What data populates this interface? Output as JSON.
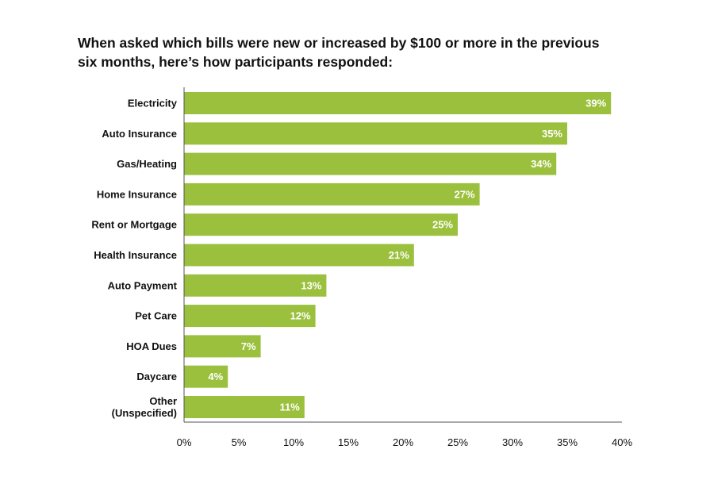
{
  "chart_data": {
    "type": "bar",
    "orientation": "horizontal",
    "title_lines": [
      "When asked which bills were new or increased by $100 or more in the previous",
      "six months, here’s how participants responded:"
    ],
    "categories": [
      [
        "Electricity"
      ],
      [
        "Auto Insurance"
      ],
      [
        "Gas/Heating"
      ],
      [
        "Home Insurance"
      ],
      [
        "Rent or Mortgage"
      ],
      [
        "Health Insurance"
      ],
      [
        "Auto Payment"
      ],
      [
        "Pet Care"
      ],
      [
        "HOA Dues"
      ],
      [
        "Daycare"
      ],
      [
        "Other",
        "(Unspecified)"
      ]
    ],
    "values": [
      39,
      35,
      34,
      27,
      25,
      21,
      13,
      12,
      7,
      4,
      11
    ],
    "value_labels": [
      "39%",
      "35%",
      "34%",
      "27%",
      "25%",
      "21%",
      "13%",
      "12%",
      "7%",
      "4%",
      "11%"
    ],
    "xlim": [
      0,
      40
    ],
    "xticks": [
      0,
      5,
      10,
      15,
      20,
      25,
      30,
      35,
      40
    ],
    "xtick_labels": [
      "0%",
      "5%",
      "10%",
      "15%",
      "20%",
      "25%",
      "30%",
      "35%",
      "40%"
    ],
    "grid": false,
    "bar_color": "#9bc03d",
    "axis_color": "#555555"
  }
}
